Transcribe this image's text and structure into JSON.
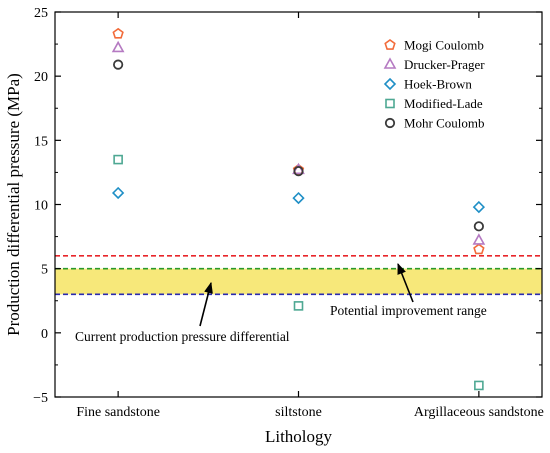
{
  "chart_data": {
    "type": "scatter",
    "xlabel": "Lithology",
    "ylabel": "Production differential pressure (MPa)",
    "categories": [
      "Fine sandstone",
      "siltstone",
      "Argillaceous sandstone"
    ],
    "ylim": [
      -5,
      25
    ],
    "yticks": [
      -5,
      0,
      5,
      10,
      15,
      20,
      25
    ],
    "grid": false,
    "legend_position": "top-right",
    "series": [
      {
        "name": "Mogi Coulomb",
        "marker": "pentagon",
        "color": "#f26b3a",
        "values": [
          23.3,
          12.7,
          6.5
        ]
      },
      {
        "name": "Drucker-Prager",
        "marker": "triangle",
        "color": "#b57ac2",
        "values": [
          22.2,
          12.7,
          7.2
        ]
      },
      {
        "name": "Hoek-Brown",
        "marker": "diamond",
        "color": "#1f8fc6",
        "values": [
          10.9,
          10.5,
          9.8
        ]
      },
      {
        "name": "Modified-Lade",
        "marker": "square",
        "color": "#4ea893",
        "values": [
          13.5,
          2.1,
          -4.1
        ]
      },
      {
        "name": "Mohr Coulomb",
        "marker": "circle",
        "color": "#3a3a3a",
        "values": [
          20.9,
          12.6,
          8.3
        ]
      }
    ],
    "reference_lines": [
      {
        "value": 6,
        "color": "#e8262a",
        "style": "dashed"
      },
      {
        "value": 5,
        "color": "#2a9a2a",
        "style": "dashed"
      },
      {
        "value": 3,
        "color": "#2a2ab0",
        "style": "dashed"
      }
    ],
    "band": {
      "from": 3,
      "to": 5,
      "color": "#f7e87a"
    },
    "annotations": [
      {
        "text": "Current production pressure differential",
        "target": {
          "x": 0.55,
          "y": 4
        },
        "label_anchor": {
          "x": 0.4,
          "y": 0
        }
      },
      {
        "text": "Potential improvement range",
        "target": {
          "x": 1.85,
          "y": 5.6
        },
        "label_anchor": {
          "x": 1.95,
          "y": 2
        }
      }
    ]
  }
}
